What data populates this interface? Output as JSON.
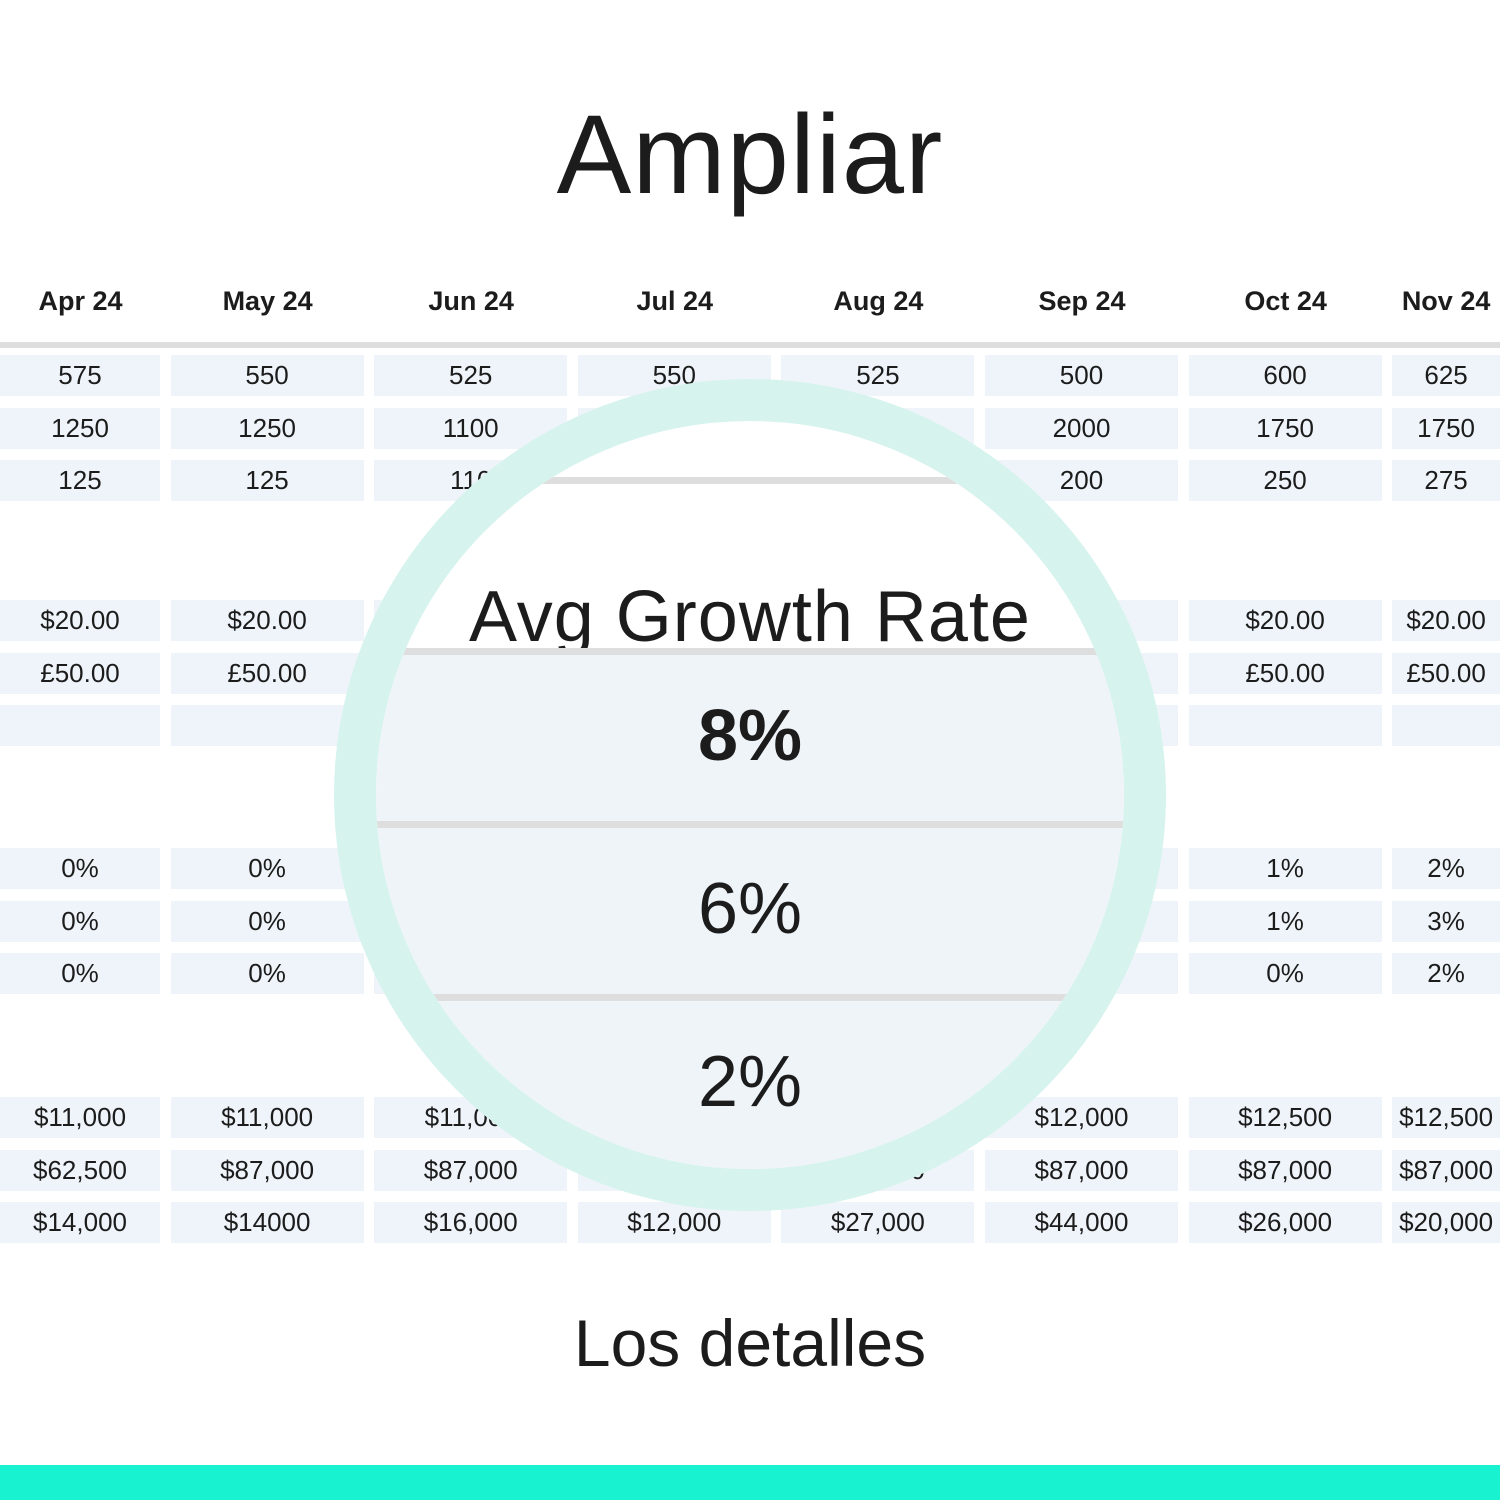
{
  "title": "Ampliar",
  "subtitle": "Los detalles",
  "months": [
    "Apr 24",
    "May 24",
    "Jun 24",
    "Jul 24",
    "Aug 24",
    "Sep 24",
    "Oct 24",
    "Nov 24"
  ],
  "groups": [
    [
      [
        "575",
        "550",
        "525",
        "550",
        "525",
        "500",
        "600",
        "625"
      ],
      [
        "1250",
        "1250",
        "1100",
        "",
        "",
        "2000",
        "1750",
        "1750"
      ],
      [
        "125",
        "125",
        "110",
        "",
        "",
        "200",
        "250",
        "275"
      ]
    ],
    [
      [
        "$20.00",
        "$20.00",
        "",
        "",
        "",
        "",
        "$20.00",
        "$20.00"
      ],
      [
        "£50.00",
        "£50.00",
        "",
        "",
        "",
        "",
        "£50.00",
        "£50.00"
      ],
      [
        "",
        "",
        "",
        "",
        "",
        "",
        "",
        ""
      ]
    ],
    [
      [
        "0%",
        "0%",
        "",
        "",
        "",
        "",
        "1%",
        "2%"
      ],
      [
        "0%",
        "0%",
        "",
        "",
        "",
        "",
        "1%",
        "3%"
      ],
      [
        "0%",
        "0%",
        "",
        "",
        "",
        "",
        "0%",
        "2%"
      ]
    ],
    [
      [
        "$11,000",
        "$11,000",
        "$11,000",
        "",
        "",
        "$12,000",
        "$12,500",
        "$12,500"
      ],
      [
        "$62,500",
        "$87,000",
        "$87,000",
        "",
        "$87,000",
        "$87,000",
        "$87,000",
        "$87,000"
      ],
      [
        "$14,000",
        "$14000",
        "$16,000",
        "$12,000",
        "$27,000",
        "$44,000",
        "$26,000",
        "$20,000"
      ]
    ]
  ],
  "magnifier": {
    "heading": "Avg Growth Rate",
    "values": [
      "8%",
      "6%",
      "2%"
    ]
  },
  "colors": {
    "accent": "#19f2d0",
    "ring": "#d6f3ee",
    "cell": "#eef4f9"
  }
}
